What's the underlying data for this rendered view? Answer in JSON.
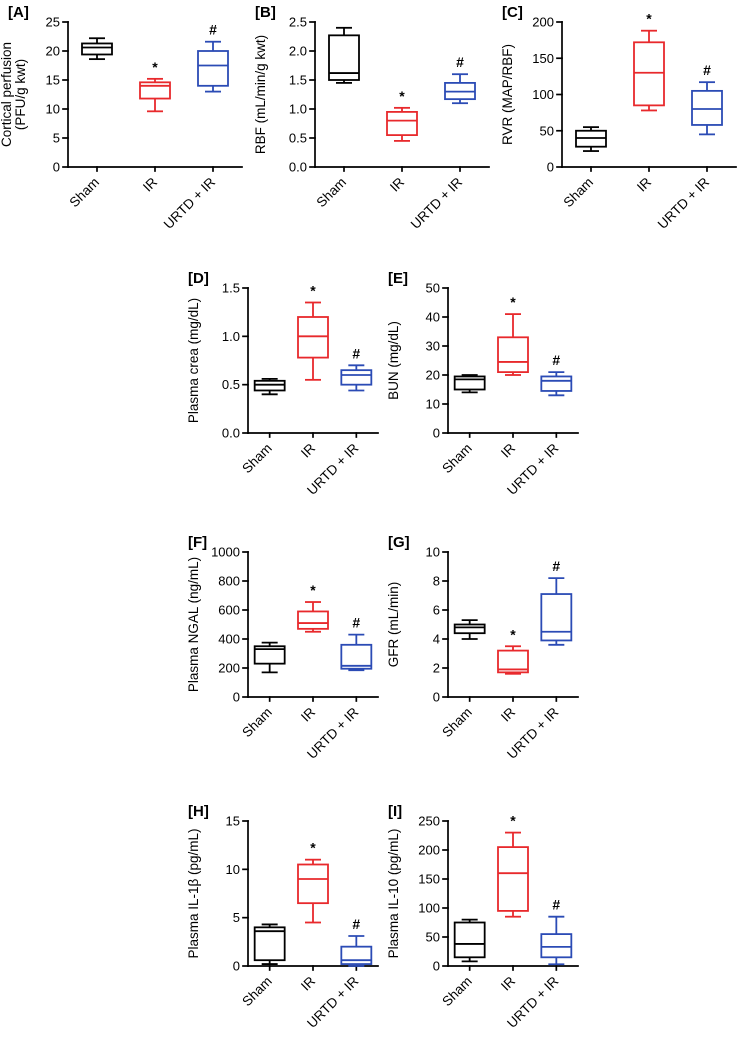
{
  "figure": {
    "groups": [
      "Sham",
      "IR",
      "URTD + IR"
    ],
    "group_colors": {
      "sham": "#000000",
      "ir": "#e8292c",
      "urtd_ir": "#2b4bb5"
    },
    "style": {
      "grid": false,
      "box_fill": "#ffffff",
      "legend": "none",
      "significance_ir": "*",
      "significance_urtd": "#"
    }
  },
  "chart_data": [
    {
      "type": "box",
      "panel": "[A]",
      "ylabel": "Cortical perfusion\n(PFU/g kwt)",
      "ylim": [
        0,
        25
      ],
      "yticks": [
        0,
        5,
        10,
        15,
        20,
        25
      ],
      "ytick_labels": [
        "0",
        "5",
        "10",
        "15",
        "20",
        "25"
      ],
      "categories": [
        "Sham",
        "IR",
        "URTD + IR"
      ],
      "series": [
        {
          "name": "Sham",
          "color": "#000000",
          "low": 18.6,
          "q1": 19.4,
          "median": 20.6,
          "q3": 21.3,
          "high": 22.2,
          "annotation": ""
        },
        {
          "name": "IR",
          "color": "#e8292c",
          "low": 9.6,
          "q1": 11.8,
          "median": 14.0,
          "q3": 14.6,
          "high": 15.2,
          "annotation": "*"
        },
        {
          "name": "URTD + IR",
          "color": "#2b4bb5",
          "low": 13.0,
          "q1": 14.0,
          "median": 17.5,
          "q3": 20.0,
          "high": 21.6,
          "annotation": "#"
        }
      ]
    },
    {
      "type": "box",
      "panel": "[B]",
      "ylabel": "RBF (mL/min/g kwt)",
      "ylim": [
        0,
        2.5
      ],
      "yticks": [
        0,
        0.5,
        1.0,
        1.5,
        2.0,
        2.5
      ],
      "ytick_labels": [
        "0.0",
        "0.5",
        "1.0",
        "1.5",
        "2.0",
        "2.5"
      ],
      "categories": [
        "Sham",
        "IR",
        "URTD + IR"
      ],
      "series": [
        {
          "name": "Sham",
          "color": "#000000",
          "low": 1.45,
          "q1": 1.5,
          "median": 1.62,
          "q3": 2.27,
          "high": 2.4,
          "annotation": ""
        },
        {
          "name": "IR",
          "color": "#e8292c",
          "low": 0.45,
          "q1": 0.55,
          "median": 0.8,
          "q3": 0.95,
          "high": 1.02,
          "annotation": "*"
        },
        {
          "name": "URTD + IR",
          "color": "#2b4bb5",
          "low": 1.1,
          "q1": 1.17,
          "median": 1.3,
          "q3": 1.45,
          "high": 1.6,
          "annotation": "#"
        }
      ]
    },
    {
      "type": "box",
      "panel": "[C]",
      "ylabel": "RVR (MAP/RBF)",
      "ylim": [
        0,
        200
      ],
      "yticks": [
        0,
        50,
        100,
        150,
        200
      ],
      "ytick_labels": [
        "0",
        "50",
        "100",
        "150",
        "200"
      ],
      "categories": [
        "Sham",
        "IR",
        "URTD + IR"
      ],
      "series": [
        {
          "name": "Sham",
          "color": "#000000",
          "low": 22,
          "q1": 28,
          "median": 40,
          "q3": 50,
          "high": 55,
          "annotation": ""
        },
        {
          "name": "IR",
          "color": "#e8292c",
          "low": 78,
          "q1": 85,
          "median": 130,
          "q3": 172,
          "high": 188,
          "annotation": "*"
        },
        {
          "name": "URTD + IR",
          "color": "#2b4bb5",
          "low": 45,
          "q1": 58,
          "median": 80,
          "q3": 105,
          "high": 117,
          "annotation": "#"
        }
      ]
    },
    {
      "type": "box",
      "panel": "[D]",
      "ylabel": "Plasma crea (mg/dL)",
      "ylim": [
        0,
        1.5
      ],
      "yticks": [
        0,
        0.5,
        1.0,
        1.5
      ],
      "ytick_labels": [
        "0.0",
        "0.5",
        "1.0",
        "1.5"
      ],
      "categories": [
        "Sham",
        "IR",
        "URTD + IR"
      ],
      "series": [
        {
          "name": "Sham",
          "color": "#000000",
          "low": 0.4,
          "q1": 0.44,
          "median": 0.5,
          "q3": 0.54,
          "high": 0.56,
          "annotation": ""
        },
        {
          "name": "IR",
          "color": "#e8292c",
          "low": 0.55,
          "q1": 0.78,
          "median": 1.0,
          "q3": 1.2,
          "high": 1.35,
          "annotation": "*"
        },
        {
          "name": "URTD + IR",
          "color": "#2b4bb5",
          "low": 0.44,
          "q1": 0.5,
          "median": 0.6,
          "q3": 0.65,
          "high": 0.7,
          "annotation": "#"
        }
      ]
    },
    {
      "type": "box",
      "panel": "[E]",
      "ylabel": "BUN (mg/dL)",
      "ylim": [
        0,
        50
      ],
      "yticks": [
        0,
        10,
        20,
        30,
        40,
        50
      ],
      "ytick_labels": [
        "0",
        "10",
        "20",
        "30",
        "40",
        "50"
      ],
      "categories": [
        "Sham",
        "IR",
        "URTD + IR"
      ],
      "series": [
        {
          "name": "Sham",
          "color": "#000000",
          "low": 14,
          "q1": 15,
          "median": 18.5,
          "q3": 19.5,
          "high": 20,
          "annotation": ""
        },
        {
          "name": "IR",
          "color": "#e8292c",
          "low": 20,
          "q1": 21,
          "median": 24.5,
          "q3": 33,
          "high": 41,
          "annotation": "*"
        },
        {
          "name": "URTD + IR",
          "color": "#2b4bb5",
          "low": 13,
          "q1": 14.5,
          "median": 18,
          "q3": 19.5,
          "high": 21,
          "annotation": "#"
        }
      ]
    },
    {
      "type": "box",
      "panel": "[F]",
      "ylabel": "Plasma NGAL (ng/mL)",
      "ylim": [
        0,
        1000
      ],
      "yticks": [
        0,
        200,
        400,
        600,
        800,
        1000
      ],
      "ytick_labels": [
        "0",
        "200",
        "400",
        "600",
        "800",
        "1000"
      ],
      "categories": [
        "Sham",
        "IR",
        "URTD + IR"
      ],
      "series": [
        {
          "name": "Sham",
          "color": "#000000",
          "low": 170,
          "q1": 230,
          "median": 330,
          "q3": 350,
          "high": 375,
          "annotation": ""
        },
        {
          "name": "IR",
          "color": "#e8292c",
          "low": 450,
          "q1": 470,
          "median": 510,
          "q3": 590,
          "high": 655,
          "annotation": "*"
        },
        {
          "name": "URTD + IR",
          "color": "#2b4bb5",
          "low": 185,
          "q1": 195,
          "median": 215,
          "q3": 360,
          "high": 430,
          "annotation": "#"
        }
      ]
    },
    {
      "type": "box",
      "panel": "[G]",
      "ylabel": "GFR (mL/min)",
      "ylim": [
        0,
        10
      ],
      "yticks": [
        0,
        2,
        4,
        6,
        8,
        10
      ],
      "ytick_labels": [
        "0",
        "2",
        "4",
        "6",
        "8",
        "10"
      ],
      "categories": [
        "Sham",
        "IR",
        "URTD + IR"
      ],
      "series": [
        {
          "name": "Sham",
          "color": "#000000",
          "low": 4.0,
          "q1": 4.4,
          "median": 4.8,
          "q3": 5.0,
          "high": 5.3,
          "annotation": ""
        },
        {
          "name": "IR",
          "color": "#e8292c",
          "low": 1.6,
          "q1": 1.7,
          "median": 1.9,
          "q3": 3.2,
          "high": 3.5,
          "annotation": "*"
        },
        {
          "name": "URTD + IR",
          "color": "#2b4bb5",
          "low": 3.6,
          "q1": 3.9,
          "median": 4.5,
          "q3": 7.1,
          "high": 8.2,
          "annotation": "#"
        }
      ]
    },
    {
      "type": "box",
      "panel": "[H]",
      "ylabel": "Plasma IL-1β (pg/mL)",
      "ylim": [
        0,
        15
      ],
      "yticks": [
        0,
        5,
        10,
        15
      ],
      "ytick_labels": [
        "0",
        "5",
        "10",
        "15"
      ],
      "categories": [
        "Sham",
        "IR",
        "URTD + IR"
      ],
      "series": [
        {
          "name": "Sham",
          "color": "#000000",
          "low": 0.2,
          "q1": 0.6,
          "median": 3.6,
          "q3": 4.0,
          "high": 4.3,
          "annotation": ""
        },
        {
          "name": "IR",
          "color": "#e8292c",
          "low": 4.5,
          "q1": 6.5,
          "median": 9.0,
          "q3": 10.5,
          "high": 11.0,
          "annotation": "*"
        },
        {
          "name": "URTD + IR",
          "color": "#2b4bb5",
          "low": 0.0,
          "q1": 0.2,
          "median": 0.6,
          "q3": 2.0,
          "high": 3.1,
          "annotation": "#"
        }
      ]
    },
    {
      "type": "box",
      "panel": "[I]",
      "ylabel": "Plasma IL-10 (pg/mL)",
      "ylim": [
        0,
        250
      ],
      "yticks": [
        0,
        50,
        100,
        150,
        200,
        250
      ],
      "ytick_labels": [
        "0",
        "50",
        "100",
        "150",
        "200",
        "250"
      ],
      "categories": [
        "Sham",
        "IR",
        "URTD + IR"
      ],
      "series": [
        {
          "name": "Sham",
          "color": "#000000",
          "low": 8,
          "q1": 15,
          "median": 38,
          "q3": 75,
          "high": 80,
          "annotation": ""
        },
        {
          "name": "IR",
          "color": "#e8292c",
          "low": 85,
          "q1": 95,
          "median": 160,
          "q3": 205,
          "high": 230,
          "annotation": "*"
        },
        {
          "name": "URTD + IR",
          "color": "#2b4bb5",
          "low": 3,
          "q1": 15,
          "median": 33,
          "q3": 55,
          "high": 85,
          "annotation": "#"
        }
      ]
    }
  ]
}
